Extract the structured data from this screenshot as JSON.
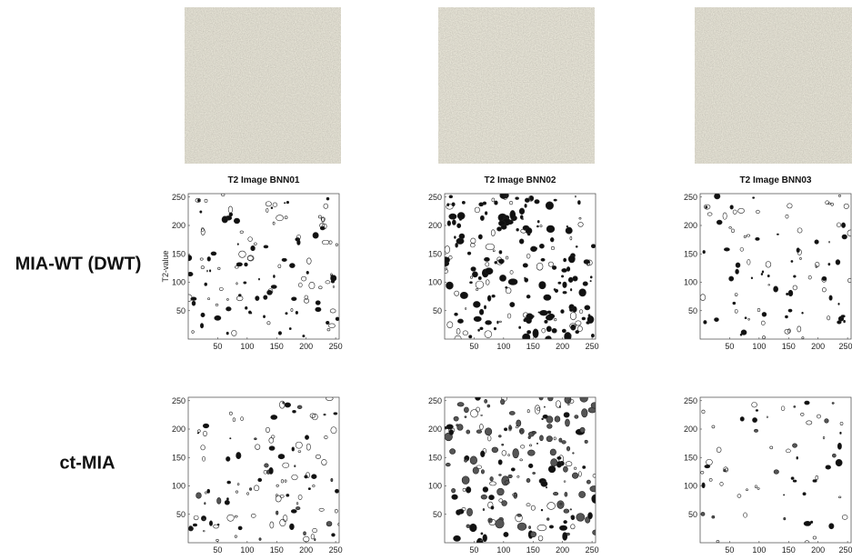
{
  "row_labels": [
    "MIA-WT (DWT)",
    "ct-MIA"
  ],
  "panel_titles": [
    "T2 Image BNN01",
    "T2 Image BNN02",
    "T2 Image BNN03"
  ],
  "y_axis_label": "T2-value",
  "axis_range": [
    0,
    256
  ],
  "ticks": [
    50,
    100,
    150,
    200,
    250
  ]
}
